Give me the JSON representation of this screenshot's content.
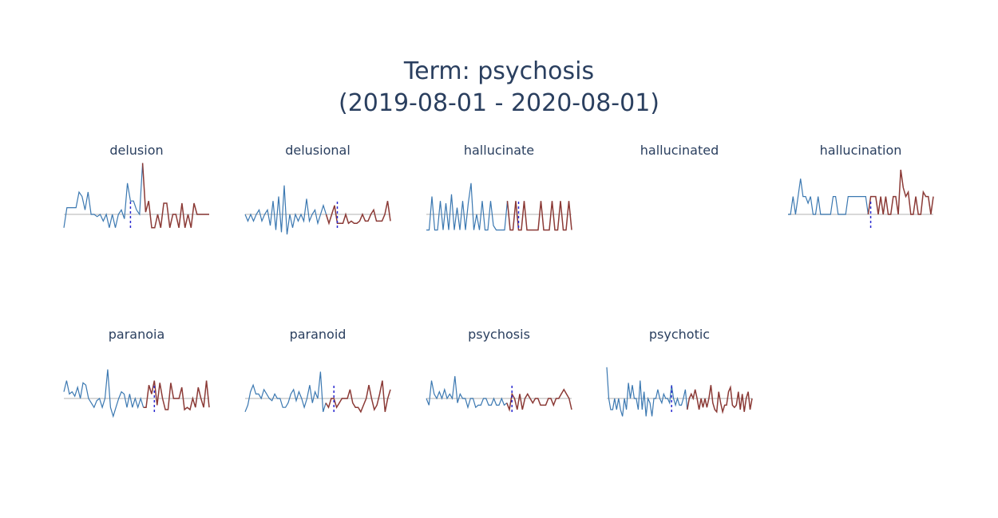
{
  "title_line_1": "Term: psychosis",
  "title_line_2": "(2019-08-01 - 2020-08-01)",
  "colors": {
    "before": "#3b78b1",
    "after": "#8b3a36",
    "baseline": "#cccccc",
    "split_marker": "#2b2bd0"
  },
  "chart_data": [
    {
      "type": "line",
      "title": "delusion",
      "split_index": 22,
      "values": [
        -6,
        3,
        3,
        3,
        3,
        10,
        8,
        2,
        10,
        0,
        0,
        -1,
        0,
        -3,
        0,
        -6,
        0,
        -6,
        0,
        2,
        -2,
        14,
        6,
        6,
        2,
        0,
        23,
        1,
        6,
        -6,
        -6,
        0,
        -6,
        5,
        5,
        -6,
        0,
        0,
        -6,
        5,
        -6,
        0,
        -6,
        5,
        0,
        0,
        0,
        0,
        0
      ]
    },
    {
      "type": "line",
      "title": "delusional",
      "split_index": 33,
      "values": [
        0,
        -3,
        0,
        -3,
        0,
        2,
        -3,
        0,
        2,
        -5,
        6,
        -7,
        8,
        -8,
        13,
        -9,
        0,
        -6,
        0,
        -3,
        0,
        -3,
        7,
        -3,
        0,
        2,
        -4,
        0,
        4,
        0,
        -4,
        0,
        4,
        -4,
        -4,
        -4,
        0,
        -4,
        -3,
        -4,
        -4,
        -3,
        0,
        -3,
        -3,
        0,
        2,
        -3,
        -3,
        -3,
        0,
        6,
        -3
      ]
    },
    {
      "type": "line",
      "title": "hallucinate",
      "split_index": 33,
      "values": [
        -7,
        -7,
        8,
        -7,
        -7,
        6,
        -7,
        5,
        -7,
        9,
        -7,
        3,
        -7,
        6,
        -7,
        5,
        14,
        -7,
        0,
        -7,
        6,
        -7,
        -7,
        6,
        -5,
        -7,
        -7,
        -7,
        -7,
        6,
        -7,
        -7,
        6,
        -7,
        -7,
        6,
        -7,
        -7,
        -7,
        -7,
        -7,
        6,
        -7,
        -7,
        -7,
        6,
        -7,
        -7,
        6,
        -7,
        -7,
        6,
        -7
      ]
    },
    {
      "type": "line",
      "title": "hallucinated",
      "split_index": 0,
      "values": []
    },
    {
      "type": "line",
      "title": "hallucination",
      "split_index": 33,
      "values": [
        0,
        0,
        8,
        0,
        8,
        16,
        8,
        8,
        5,
        8,
        0,
        0,
        8,
        0,
        0,
        0,
        0,
        0,
        8,
        8,
        0,
        0,
        0,
        0,
        8,
        8,
        8,
        8,
        8,
        8,
        8,
        8,
        0,
        8,
        8,
        8,
        0,
        8,
        0,
        8,
        0,
        0,
        8,
        8,
        0,
        20,
        12,
        8,
        10,
        0,
        0,
        8,
        0,
        0,
        10,
        8,
        8,
        0,
        8
      ]
    },
    {
      "type": "line",
      "title": "paranoia",
      "split_index": 33,
      "values": [
        3,
        8,
        2,
        3,
        1,
        5,
        0,
        7,
        6,
        0,
        -2,
        -4,
        -1,
        0,
        -4,
        0,
        13,
        -4,
        -8,
        -4,
        0,
        3,
        2,
        -4,
        2,
        -4,
        0,
        -4,
        0,
        -4,
        -4,
        6,
        2,
        8,
        -3,
        7,
        0,
        -5,
        -5,
        7,
        0,
        0,
        0,
        5,
        -5,
        -4,
        -5,
        0,
        -4,
        5,
        0,
        -4,
        8,
        -4
      ]
    },
    {
      "type": "line",
      "title": "paranoid",
      "split_index": 33,
      "values": [
        -6,
        -3,
        3,
        6,
        2,
        2,
        0,
        4,
        2,
        0,
        -1,
        2,
        0,
        0,
        -4,
        -4,
        -2,
        2,
        4,
        -1,
        3,
        0,
        -4,
        0,
        6,
        -2,
        3,
        0,
        12,
        -6,
        -2,
        -4,
        0,
        0,
        -4,
        -2,
        0,
        0,
        0,
        4,
        -2,
        -4,
        -4,
        -6,
        -3,
        0,
        6,
        0,
        -5,
        -3,
        2,
        8,
        -6,
        0,
        4
      ]
    },
    {
      "type": "line",
      "title": "psychosis",
      "split_index": 33,
      "values": [
        0,
        -3,
        8,
        2,
        0,
        3,
        0,
        4,
        0,
        2,
        0,
        10,
        -2,
        2,
        0,
        0,
        -4,
        0,
        0,
        -4,
        -3,
        -3,
        0,
        0,
        -3,
        -3,
        0,
        -3,
        -3,
        0,
        -3,
        -2,
        -5,
        2,
        0,
        -5,
        2,
        -5,
        0,
        2,
        0,
        -2,
        0,
        0,
        -3,
        -3,
        -3,
        0,
        0,
        -3,
        0,
        0,
        2,
        4,
        2,
        0,
        -5
      ]
    },
    {
      "type": "line",
      "title": "psychotic",
      "split_index": 33,
      "values": [
        14,
        0,
        -5,
        -5,
        0,
        -5,
        0,
        -5,
        -8,
        0,
        -5,
        7,
        0,
        6,
        0,
        0,
        -5,
        8,
        -5,
        3,
        -8,
        0,
        -2,
        -8,
        0,
        0,
        4,
        0,
        -2,
        2,
        0,
        0,
        -2,
        6,
        0,
        -3,
        0,
        -3,
        -3,
        0,
        4,
        -5,
        0,
        2,
        0,
        4,
        0,
        -5,
        0,
        -4,
        0,
        -4,
        0,
        6,
        -2,
        -5,
        -6,
        3,
        -2,
        -6,
        -3,
        -3,
        3,
        5,
        -3,
        -4,
        -3,
        3,
        -5,
        2,
        -6,
        0,
        3,
        -5,
        0
      ]
    }
  ]
}
